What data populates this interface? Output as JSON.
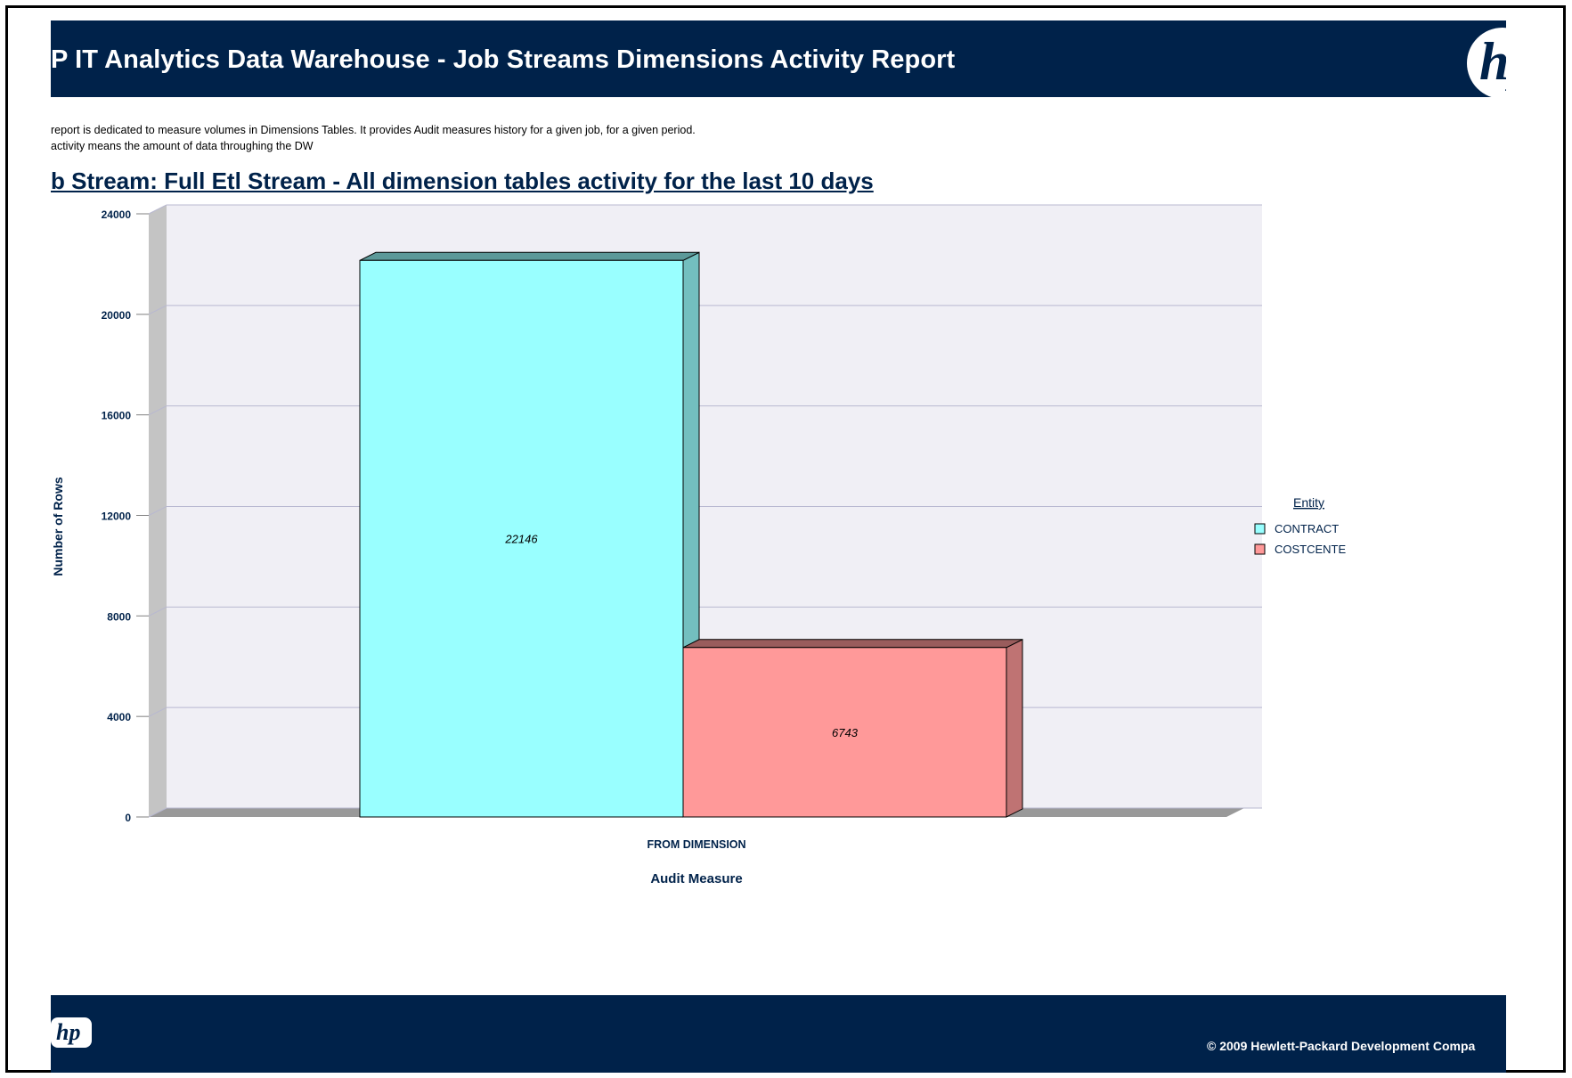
{
  "report": {
    "title": "P IT Analytics Data Warehouse - Job Streams Dimensions Activity Report",
    "description_line1": "report is dedicated to measure volumes in Dimensions Tables. It provides Audit measures history for a given job, for a given period.",
    "description_line2": "activity means the amount of data throughing the DW",
    "subtitle": "b Stream: Full Etl Stream -  All dimension tables activity for the last 10 days",
    "footer_copyright": "© 2009 Hewlett-Packard Development Compa"
  },
  "icons": {
    "header_logo": "hp-logo-icon",
    "footer_logo": "hp-logo-icon"
  },
  "chart_data": {
    "type": "bar",
    "three_d": true,
    "categories": [
      "FROM DIMENSION"
    ],
    "series": [
      {
        "name": "CONTRACT",
        "values": [
          22146
        ],
        "color": "#99ffff",
        "label": "22146"
      },
      {
        "name": "COSTCENTE",
        "values": [
          6743
        ],
        "color": "#ff9999",
        "label": "6743"
      }
    ],
    "xlabel": "Audit Measure",
    "ylabel": "Number of Rows",
    "ylim": [
      0,
      24000
    ],
    "yticks": [
      "0",
      "4000",
      "8000",
      "12000",
      "16000",
      "20000",
      "24000"
    ],
    "grid": true,
    "legend_title": "Entity",
    "legend_position": "right",
    "background_color": "#f0eff5",
    "gridline_color": "#b8b8d0",
    "axis_label_color": "#00224a"
  }
}
